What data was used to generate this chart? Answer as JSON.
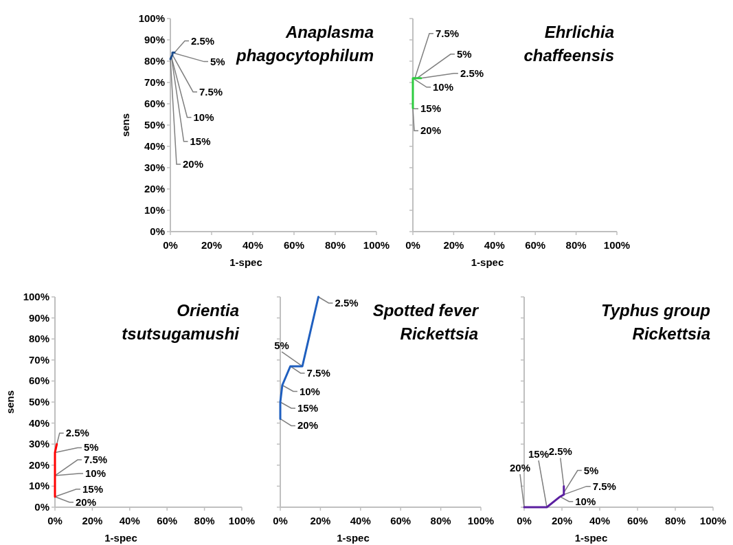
{
  "chart_data": [
    {
      "type": "line",
      "title": "Anaplasma\nphagocytophilum",
      "xlabel": "1-spec",
      "ylabel": "sens",
      "xlim": [
        0,
        100
      ],
      "ylim": [
        0,
        100
      ],
      "xticks": [
        {
          "value": 0,
          "label": "0%"
        },
        {
          "value": 20,
          "label": "20%"
        },
        {
          "value": 40,
          "label": "40%"
        },
        {
          "value": 60,
          "label": "60%"
        },
        {
          "value": 80,
          "label": "80%"
        },
        {
          "value": 100,
          "label": "100%"
        }
      ],
      "yticks": [
        {
          "value": 0,
          "label": "0%"
        },
        {
          "value": 10,
          "label": "10%"
        },
        {
          "value": 20,
          "label": "20%"
        },
        {
          "value": 30,
          "label": "30%"
        },
        {
          "value": 40,
          "label": "40%"
        },
        {
          "value": 50,
          "label": "50%"
        },
        {
          "value": 60,
          "label": "60%"
        },
        {
          "value": 70,
          "label": "70%"
        },
        {
          "value": 80,
          "label": "80%"
        },
        {
          "value": 90,
          "label": "90%"
        },
        {
          "value": 100,
          "label": "100%"
        }
      ],
      "series": [
        {
          "color": "#1f4e8c",
          "x": [
            2,
            1,
            1,
            0.5,
            0.5,
            0
          ],
          "values": [
            84,
            84,
            83,
            82,
            82,
            81
          ]
        }
      ],
      "annotations": [
        {
          "text": "2.5%",
          "x": 2,
          "y": 84
        },
        {
          "text": "5%",
          "x": 1,
          "y": 84
        },
        {
          "text": "7.5%",
          "x": 1,
          "y": 83
        },
        {
          "text": "10%",
          "x": 0.5,
          "y": 82
        },
        {
          "text": "15%",
          "x": 0.5,
          "y": 82
        },
        {
          "text": "20%",
          "x": 0,
          "y": 81
        }
      ]
    },
    {
      "type": "line",
      "title": "Ehrlichia\nchaffeensis",
      "xlabel": "1-spec",
      "xlim": [
        0,
        100
      ],
      "ylim": [
        0,
        100
      ],
      "tick_labels": "x",
      "xticks": [
        {
          "value": 0,
          "label": "0%"
        },
        {
          "value": 20,
          "label": "20%"
        },
        {
          "value": 40,
          "label": "40%"
        },
        {
          "value": 60,
          "label": "60%"
        },
        {
          "value": 80,
          "label": "80%"
        },
        {
          "value": 100,
          "label": "100%"
        }
      ],
      "yticks": [
        {
          "value": 0,
          "label": null
        },
        {
          "value": 10,
          "label": null
        },
        {
          "value": 20,
          "label": null
        },
        {
          "value": 30,
          "label": null
        },
        {
          "value": 40,
          "label": null
        },
        {
          "value": 50,
          "label": null
        },
        {
          "value": 60,
          "label": null
        },
        {
          "value": 70,
          "label": null
        },
        {
          "value": 80,
          "label": null
        },
        {
          "value": 90,
          "label": null
        },
        {
          "value": 100,
          "label": null
        }
      ],
      "series": [
        {
          "color": "#2ecc40",
          "x": [
            4,
            2,
            1,
            0,
            0,
            0
          ],
          "values": [
            72,
            72,
            72,
            72,
            58,
            58
          ]
        }
      ],
      "annotations": [
        {
          "text": "2.5%",
          "x": 4,
          "y": 72
        },
        {
          "text": "5%",
          "x": 2,
          "y": 72
        },
        {
          "text": "7.5%",
          "x": 1,
          "y": 72
        },
        {
          "text": "10%",
          "x": 0,
          "y": 72
        },
        {
          "text": "15%",
          "x": 0,
          "y": 58
        },
        {
          "text": "20%",
          "x": 0,
          "y": 58
        }
      ]
    },
    {
      "type": "line",
      "title": "Orientia\ntsutsugamushi",
      "xlabel": "1-spec",
      "ylabel": "sens",
      "xlim": [
        0,
        100
      ],
      "ylim": [
        0,
        100
      ],
      "xticks": [
        {
          "value": 0,
          "label": "0%"
        },
        {
          "value": 20,
          "label": "20%"
        },
        {
          "value": 40,
          "label": "40%"
        },
        {
          "value": 60,
          "label": "60%"
        },
        {
          "value": 80,
          "label": "80%"
        },
        {
          "value": 100,
          "label": "100%"
        }
      ],
      "yticks": [
        {
          "value": 0,
          "label": "0%"
        },
        {
          "value": 10,
          "label": "10%"
        },
        {
          "value": 20,
          "label": "20%"
        },
        {
          "value": 30,
          "label": "30%"
        },
        {
          "value": 40,
          "label": "40%"
        },
        {
          "value": 50,
          "label": "50%"
        },
        {
          "value": 60,
          "label": "60%"
        },
        {
          "value": 70,
          "label": "70%"
        },
        {
          "value": 80,
          "label": "80%"
        },
        {
          "value": 90,
          "label": "90%"
        },
        {
          "value": 100,
          "label": "100%"
        }
      ],
      "series": [
        {
          "color": "#ff0000",
          "x": [
            1,
            0,
            0,
            0,
            0,
            0
          ],
          "values": [
            30,
            26,
            15,
            15,
            5,
            5
          ]
        }
      ],
      "annotations": [
        {
          "text": "2.5%",
          "x": 1,
          "y": 30
        },
        {
          "text": "5%",
          "x": 0,
          "y": 26
        },
        {
          "text": "7.5%",
          "x": 0,
          "y": 15
        },
        {
          "text": "10%",
          "x": 0,
          "y": 15
        },
        {
          "text": "15%",
          "x": 0,
          "y": 5
        },
        {
          "text": "20%",
          "x": 0,
          "y": 5
        }
      ]
    },
    {
      "type": "line",
      "title": "Spotted fever\nRickettsia",
      "xlabel": "1-spec",
      "xlim": [
        0,
        100
      ],
      "ylim": [
        0,
        100
      ],
      "tick_labels": "x",
      "xticks": [
        {
          "value": 0,
          "label": "0%"
        },
        {
          "value": 20,
          "label": "20%"
        },
        {
          "value": 40,
          "label": "40%"
        },
        {
          "value": 60,
          "label": "60%"
        },
        {
          "value": 80,
          "label": "80%"
        },
        {
          "value": 100,
          "label": "100%"
        }
      ],
      "yticks": [
        {
          "value": 0,
          "label": null
        },
        {
          "value": 10,
          "label": null
        },
        {
          "value": 20,
          "label": null
        },
        {
          "value": 30,
          "label": null
        },
        {
          "value": 40,
          "label": null
        },
        {
          "value": 50,
          "label": null
        },
        {
          "value": 60,
          "label": null
        },
        {
          "value": 70,
          "label": null
        },
        {
          "value": 80,
          "label": null
        },
        {
          "value": 90,
          "label": null
        },
        {
          "value": 100,
          "label": null
        }
      ],
      "series": [
        {
          "color": "#1f5fbf",
          "x": [
            19,
            11,
            5,
            1,
            0,
            0
          ],
          "values": [
            100,
            67,
            67,
            58,
            50,
            42
          ]
        }
      ],
      "annotations": [
        {
          "text": "2.5%",
          "x": 19,
          "y": 100
        },
        {
          "text": "5%",
          "x": 11,
          "y": 67
        },
        {
          "text": "7.5%",
          "x": 5,
          "y": 67
        },
        {
          "text": "10%",
          "x": 1,
          "y": 58
        },
        {
          "text": "15%",
          "x": 0,
          "y": 50
        },
        {
          "text": "20%",
          "x": 0,
          "y": 42
        }
      ]
    },
    {
      "type": "line",
      "title": "Typhus group\nRickettsia",
      "xlabel": "1-spec",
      "xlim": [
        0,
        100
      ],
      "ylim": [
        0,
        100
      ],
      "tick_labels": "x",
      "xticks": [
        {
          "value": 0,
          "label": "0%"
        },
        {
          "value": 20,
          "label": "20%"
        },
        {
          "value": 40,
          "label": "40%"
        },
        {
          "value": 60,
          "label": "60%"
        },
        {
          "value": 80,
          "label": "80%"
        },
        {
          "value": 100,
          "label": "100%"
        }
      ],
      "yticks": [
        {
          "value": 0,
          "label": null
        },
        {
          "value": 10,
          "label": null
        },
        {
          "value": 20,
          "label": null
        },
        {
          "value": 30,
          "label": null
        },
        {
          "value": 40,
          "label": null
        },
        {
          "value": 50,
          "label": null
        },
        {
          "value": 60,
          "label": null
        },
        {
          "value": 70,
          "label": null
        },
        {
          "value": 80,
          "label": null
        },
        {
          "value": 90,
          "label": null
        },
        {
          "value": 100,
          "label": null
        }
      ],
      "series": [
        {
          "color": "#5b1fa0",
          "x": [
            21,
            21,
            21,
            19,
            12,
            0
          ],
          "values": [
            10,
            7,
            6,
            5,
            0,
            0
          ]
        }
      ],
      "annotations": [
        {
          "text": "2.5%",
          "x": 21,
          "y": 10
        },
        {
          "text": "5%",
          "x": 21,
          "y": 7
        },
        {
          "text": "7.5%",
          "x": 21,
          "y": 6
        },
        {
          "text": "10%",
          "x": 19,
          "y": 5
        },
        {
          "text": "15%",
          "x": 12,
          "y": 0
        },
        {
          "text": "20%",
          "x": 0,
          "y": 0
        }
      ]
    }
  ]
}
